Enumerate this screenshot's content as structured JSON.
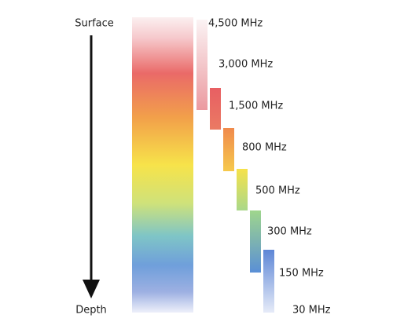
{
  "axis": {
    "top_label": "Surface",
    "bottom_label": "Depth"
  },
  "frequencies": [
    "4,500 MHz",
    "3,000 MHz",
    "1,500 MHz",
    "800 MHz",
    "500 MHz",
    "300 MHz",
    "150 MHz",
    "30 MHz"
  ]
}
